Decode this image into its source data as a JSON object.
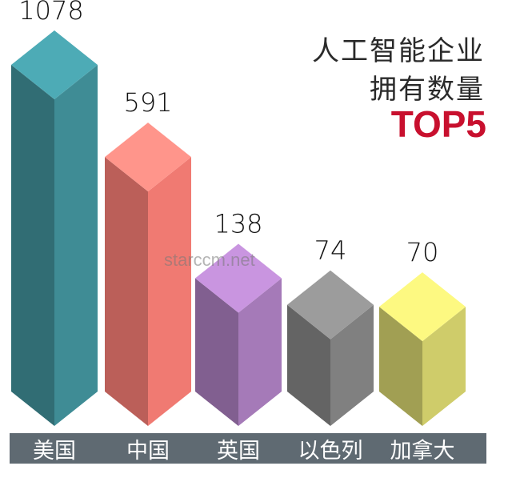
{
  "title": {
    "line1": "人工智能企业",
    "line2": "拥有数量",
    "line3": "TOP5"
  },
  "watermark": "starccm.net",
  "colors": {
    "title_accent": "#c8102e",
    "category_bar": "#5f6a72",
    "label_text": "#ffffff"
  },
  "chart_data": {
    "type": "bar",
    "style": "3d-isometric-columns",
    "categories": [
      "美国",
      "中国",
      "英国",
      "以色列",
      "加拿大"
    ],
    "values": [
      1078,
      591,
      138,
      74,
      70
    ],
    "data_labels": [
      "1078",
      "591",
      "138",
      "74",
      "70"
    ],
    "series_colors": [
      "#3f8c95",
      "#f07a72",
      "#a57ab8",
      "#808080",
      "#cfcc6a"
    ],
    "grid": false,
    "legend": "none"
  }
}
